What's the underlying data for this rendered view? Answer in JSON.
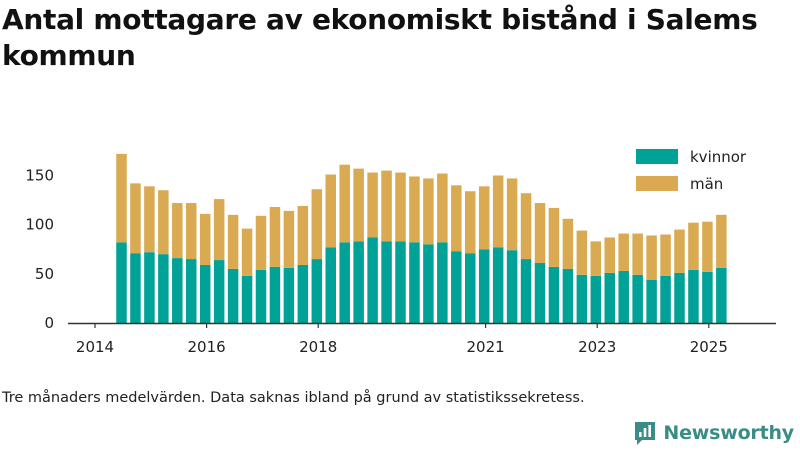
{
  "title": "Antal mottagare av ekonomiskt bistånd i Salems kommun",
  "footnote": "Tre månaders medelvärden. Data saknas ibland på grund av statistikssekretess.",
  "brand": "Newsworthy",
  "colors": {
    "kvinnor": "#00a196",
    "man": "#d9aa52",
    "brand": "#3a8d87"
  },
  "chart_data": {
    "type": "bar",
    "stacked": true,
    "frequency": "quarterly",
    "x": [
      "2014-Q2",
      "2014-Q3",
      "2014-Q4",
      "2015-Q1",
      "2015-Q2",
      "2015-Q3",
      "2015-Q4",
      "2016-Q1",
      "2016-Q2",
      "2016-Q3",
      "2016-Q4",
      "2017-Q1",
      "2017-Q2",
      "2017-Q3",
      "2017-Q4",
      "2018-Q1",
      "2018-Q2",
      "2018-Q3",
      "2018-Q4",
      "2019-Q1",
      "2019-Q2",
      "2019-Q3",
      "2019-Q4",
      "2020-Q1",
      "2020-Q2",
      "2020-Q3",
      "2020-Q4",
      "2021-Q1",
      "2021-Q2",
      "2021-Q3",
      "2021-Q4",
      "2022-Q1",
      "2022-Q2",
      "2022-Q3",
      "2022-Q4",
      "2023-Q1",
      "2023-Q2",
      "2023-Q3",
      "2023-Q4",
      "2024-Q1",
      "2024-Q2",
      "2024-Q3",
      "2024-Q4",
      "2025-Q1"
    ],
    "series": [
      {
        "name": "kvinnor",
        "values": [
          82,
          71,
          72,
          70,
          66,
          65,
          59,
          64,
          55,
          48,
          54,
          57,
          56,
          59,
          65,
          77,
          82,
          83,
          87,
          83,
          83,
          82,
          80,
          82,
          73,
          71,
          75,
          77,
          74,
          65,
          61,
          57,
          55,
          49,
          48,
          51,
          53,
          49,
          44,
          48,
          51,
          54,
          52,
          56
        ]
      },
      {
        "name": "män",
        "values": [
          90,
          71,
          67,
          65,
          56,
          57,
          52,
          62,
          55,
          48,
          55,
          61,
          58,
          60,
          71,
          74,
          79,
          74,
          66,
          72,
          70,
          67,
          67,
          70,
          67,
          63,
          64,
          73,
          73,
          67,
          61,
          60,
          51,
          45,
          35,
          36,
          38,
          42,
          45,
          42,
          44,
          48,
          51,
          54
        ]
      }
    ],
    "x_ticks": [
      "2014",
      "2016",
      "2018",
      "2021",
      "2023",
      "2025"
    ],
    "y_ticks": [
      0,
      50,
      100,
      150
    ],
    "ylim": [
      0,
      180
    ],
    "grid": false,
    "legend_position": "top-right",
    "legend": [
      "kvinnor",
      "män"
    ]
  }
}
